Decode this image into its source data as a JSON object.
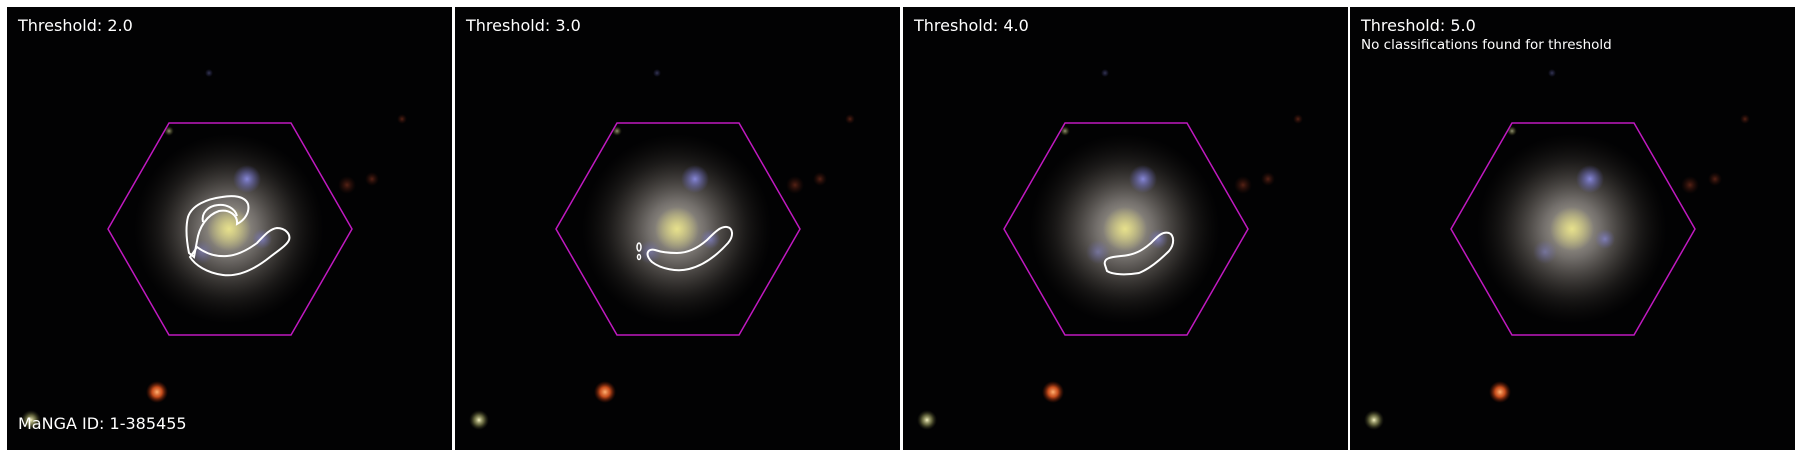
{
  "panels": [
    {
      "threshold_label": "Threshold: 2.0",
      "note": ""
    },
    {
      "threshold_label": "Threshold: 3.0",
      "note": ""
    },
    {
      "threshold_label": "Threshold: 4.0",
      "note": ""
    },
    {
      "threshold_label": "Threshold: 5.0",
      "note": "No classifications found for threshold"
    }
  ],
  "manga_id_label": "MaNGA ID: 1-385455",
  "colors": {
    "hexagon": "#c019c0",
    "contour": "#ffffff",
    "background": "#020203",
    "separator": "#ffffff"
  }
}
